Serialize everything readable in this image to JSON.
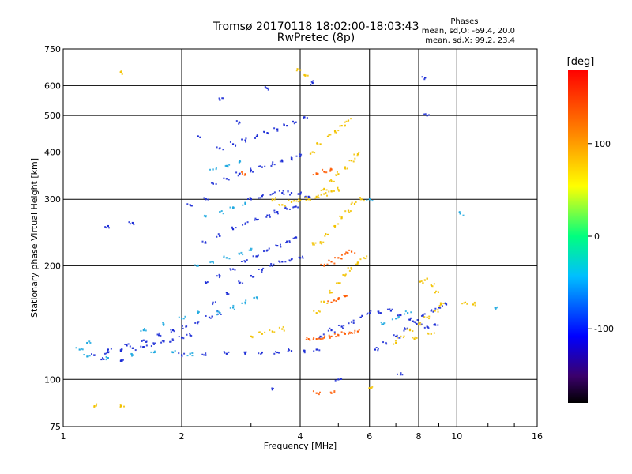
{
  "title": "Tromsø 20170118 18:02:00-18:03:43",
  "subtitle": "RwPretec (8p)",
  "phase_stats": {
    "heading": "Phases",
    "line_o": "mean, sd,O: -69.4, 20.0",
    "line_x": "mean, sd,X:  99.2, 23.4"
  },
  "chart_data": {
    "type": "scatter",
    "xlabel": "Frequency [MHz]",
    "ylabel": "Stationary phase Virtual Height [km]",
    "x_scale": "log",
    "y_scale": "log",
    "xlim": [
      1,
      16
    ],
    "ylim": [
      75,
      750
    ],
    "x_ticks": [
      1,
      2,
      4,
      6,
      8,
      10,
      16
    ],
    "y_ticks": [
      75,
      100,
      200,
      300,
      400,
      500,
      600,
      750
    ],
    "grid": true,
    "colorbar": {
      "label": "[deg]",
      "range": [
        -180,
        180
      ],
      "ticks": [
        100,
        0,
        -100
      ],
      "colors": [
        "#000000",
        "#4b0082",
        "#0000ff",
        "#00bfff",
        "#00ff7f",
        "#ffff00",
        "#ff8c00",
        "#ff0000"
      ]
    },
    "series": [
      {
        "mode": "O",
        "color_hint": "blue",
        "points": [
          [
            1.2,
            116
          ],
          [
            1.3,
            118
          ],
          [
            1.4,
            119
          ],
          [
            1.5,
            121
          ],
          [
            1.6,
            122
          ],
          [
            1.7,
            124
          ],
          [
            1.8,
            126
          ],
          [
            1.9,
            127
          ],
          [
            2.0,
            129
          ],
          [
            2.1,
            131
          ],
          [
            1.3,
            120
          ],
          [
            1.45,
            123
          ],
          [
            1.6,
            127
          ],
          [
            1.75,
            131
          ],
          [
            1.9,
            135
          ],
          [
            2.05,
            138
          ],
          [
            2.2,
            142
          ],
          [
            2.35,
            146
          ],
          [
            2.5,
            150
          ],
          [
            2.0,
            116
          ],
          [
            2.3,
            116
          ],
          [
            2.6,
            117
          ],
          [
            2.9,
            117
          ],
          [
            3.2,
            118
          ],
          [
            3.5,
            118
          ],
          [
            3.8,
            119
          ],
          [
            4.1,
            119
          ],
          [
            4.4,
            120
          ],
          [
            2.4,
            160
          ],
          [
            2.6,
            170
          ],
          [
            2.8,
            180
          ],
          [
            3.0,
            188
          ],
          [
            3.2,
            195
          ],
          [
            3.4,
            200
          ],
          [
            3.6,
            205
          ],
          [
            3.8,
            208
          ],
          [
            4.0,
            210
          ],
          [
            2.3,
            230
          ],
          [
            2.5,
            240
          ],
          [
            2.7,
            250
          ],
          [
            2.9,
            258
          ],
          [
            3.1,
            265
          ],
          [
            3.3,
            272
          ],
          [
            3.5,
            278
          ],
          [
            3.7,
            283
          ],
          [
            3.9,
            287
          ],
          [
            2.4,
            330
          ],
          [
            2.6,
            340
          ],
          [
            2.8,
            350
          ],
          [
            3.0,
            358
          ],
          [
            3.2,
            365
          ],
          [
            3.4,
            372
          ],
          [
            3.6,
            378
          ],
          [
            3.8,
            383
          ],
          [
            4.0,
            390
          ],
          [
            2.5,
            410
          ],
          [
            2.7,
            420
          ],
          [
            2.9,
            430
          ],
          [
            3.1,
            440
          ],
          [
            3.3,
            450
          ],
          [
            3.5,
            460
          ],
          [
            3.7,
            470
          ],
          [
            3.9,
            480
          ],
          [
            4.1,
            495
          ],
          [
            2.3,
            180
          ],
          [
            2.5,
            188
          ],
          [
            2.7,
            196
          ],
          [
            2.9,
            205
          ],
          [
            3.1,
            212
          ],
          [
            3.3,
            220
          ],
          [
            3.5,
            226
          ],
          [
            3.7,
            232
          ],
          [
            3.9,
            238
          ],
          [
            3.0,
            300
          ],
          [
            3.2,
            306
          ],
          [
            3.4,
            310
          ],
          [
            3.6,
            312
          ],
          [
            3.8,
            312
          ],
          [
            4.0,
            310
          ],
          [
            4.2,
            305
          ],
          [
            6.2,
            120
          ],
          [
            6.6,
            125
          ],
          [
            7.0,
            130
          ],
          [
            7.4,
            136
          ],
          [
            7.8,
            142
          ],
          [
            8.2,
            148
          ],
          [
            8.6,
            152
          ],
          [
            9.0,
            155
          ],
          [
            9.4,
            158
          ],
          [
            6.4,
            150
          ],
          [
            6.8,
            152
          ],
          [
            7.2,
            148
          ],
          [
            7.6,
            144
          ],
          [
            8.0,
            140
          ],
          [
            8.4,
            138
          ],
          [
            8.8,
            140
          ],
          [
            4.5,
            130
          ],
          [
            4.8,
            135
          ],
          [
            5.1,
            138
          ],
          [
            5.4,
            142
          ],
          [
            5.7,
            146
          ],
          [
            6.0,
            150
          ],
          [
            8.3,
            630
          ],
          [
            8.4,
            500
          ],
          [
            4.3,
            610
          ],
          [
            3.3,
            590
          ],
          [
            2.5,
            550
          ],
          [
            2.8,
            480
          ],
          [
            2.2,
            440
          ],
          [
            1.3,
            255
          ],
          [
            1.5,
            260
          ],
          [
            2.3,
            300
          ],
          [
            2.1,
            290
          ],
          [
            1.25,
            113
          ],
          [
            1.4,
            112
          ],
          [
            5.0,
            100
          ],
          [
            3.4,
            94
          ],
          [
            7.2,
            104
          ]
        ]
      },
      {
        "mode": "X",
        "color_hint": "yellow-orange",
        "points": [
          [
            4.4,
            150
          ],
          [
            4.6,
            160
          ],
          [
            4.8,
            170
          ],
          [
            5.0,
            180
          ],
          [
            5.2,
            188
          ],
          [
            5.4,
            196
          ],
          [
            5.6,
            204
          ],
          [
            5.8,
            210
          ],
          [
            4.5,
            230
          ],
          [
            4.7,
            242
          ],
          [
            4.9,
            255
          ],
          [
            5.1,
            268
          ],
          [
            5.3,
            280
          ],
          [
            5.5,
            292
          ],
          [
            5.7,
            300
          ],
          [
            4.6,
            320
          ],
          [
            4.8,
            335
          ],
          [
            5.0,
            350
          ],
          [
            5.2,
            365
          ],
          [
            5.4,
            380
          ],
          [
            5.6,
            395
          ],
          [
            4.3,
            400
          ],
          [
            4.5,
            420
          ],
          [
            4.7,
            440
          ],
          [
            4.9,
            455
          ],
          [
            5.1,
            470
          ],
          [
            5.3,
            485
          ],
          [
            4.2,
            300
          ],
          [
            4.4,
            305
          ],
          [
            4.6,
            310
          ],
          [
            4.8,
            315
          ],
          [
            5.0,
            318
          ],
          [
            3.6,
            290
          ],
          [
            3.8,
            295
          ],
          [
            4.0,
            298
          ],
          [
            3.4,
            300
          ],
          [
            7.2,
            130
          ],
          [
            7.6,
            135
          ],
          [
            8.0,
            140
          ],
          [
            8.4,
            146
          ],
          [
            8.8,
            152
          ],
          [
            9.1,
            158
          ],
          [
            7.0,
            125
          ],
          [
            7.8,
            128
          ],
          [
            8.6,
            132
          ],
          [
            8.2,
            180
          ],
          [
            8.4,
            185
          ],
          [
            8.6,
            178
          ],
          [
            8.8,
            170
          ],
          [
            3.0,
            130
          ],
          [
            3.2,
            132
          ],
          [
            3.4,
            134
          ],
          [
            3.6,
            136
          ],
          [
            1.4,
            650
          ],
          [
            1.4,
            85
          ],
          [
            1.2,
            85
          ],
          [
            6.0,
            95
          ],
          [
            10.5,
            160
          ],
          [
            11.0,
            158
          ],
          [
            4.0,
            660
          ],
          [
            4.1,
            640
          ],
          [
            4.3,
            230
          ]
        ]
      },
      {
        "mode": "X",
        "color_hint": "red-orange",
        "points": [
          [
            4.2,
            128
          ],
          [
            4.4,
            128
          ],
          [
            4.6,
            129
          ],
          [
            4.8,
            130
          ],
          [
            5.0,
            131
          ],
          [
            5.2,
            132
          ],
          [
            5.4,
            133
          ],
          [
            5.6,
            134
          ],
          [
            4.6,
            200
          ],
          [
            4.8,
            205
          ],
          [
            5.0,
            210
          ],
          [
            5.2,
            215
          ],
          [
            5.4,
            218
          ],
          [
            4.8,
            160
          ],
          [
            5.0,
            163
          ],
          [
            5.2,
            166
          ],
          [
            4.4,
            350
          ],
          [
            4.6,
            355
          ],
          [
            4.8,
            360
          ],
          [
            2.9,
            350
          ],
          [
            4.4,
            92
          ],
          [
            4.8,
            92
          ]
        ]
      },
      {
        "mode": "O",
        "color_hint": "cyan",
        "points": [
          [
            1.15,
            115
          ],
          [
            1.3,
            114
          ],
          [
            1.5,
            116
          ],
          [
            1.7,
            118
          ],
          [
            1.9,
            118
          ],
          [
            2.1,
            117
          ],
          [
            2.2,
            200
          ],
          [
            2.4,
            205
          ],
          [
            2.6,
            210
          ],
          [
            2.8,
            215
          ],
          [
            3.0,
            220
          ],
          [
            2.3,
            270
          ],
          [
            2.5,
            278
          ],
          [
            2.7,
            285
          ],
          [
            2.9,
            292
          ],
          [
            2.4,
            360
          ],
          [
            2.6,
            368
          ],
          [
            2.8,
            376
          ],
          [
            2.5,
            150
          ],
          [
            2.7,
            155
          ],
          [
            2.9,
            160
          ],
          [
            3.1,
            165
          ],
          [
            1.6,
            135
          ],
          [
            1.8,
            140
          ],
          [
            2.0,
            145
          ],
          [
            2.2,
            150
          ],
          [
            6.5,
            140
          ],
          [
            7.0,
            145
          ],
          [
            7.5,
            150
          ],
          [
            1.1,
            120
          ],
          [
            1.15,
            125
          ],
          [
            10.2,
            275
          ],
          [
            12.5,
            155
          ],
          [
            6.0,
            300
          ]
        ]
      }
    ]
  }
}
